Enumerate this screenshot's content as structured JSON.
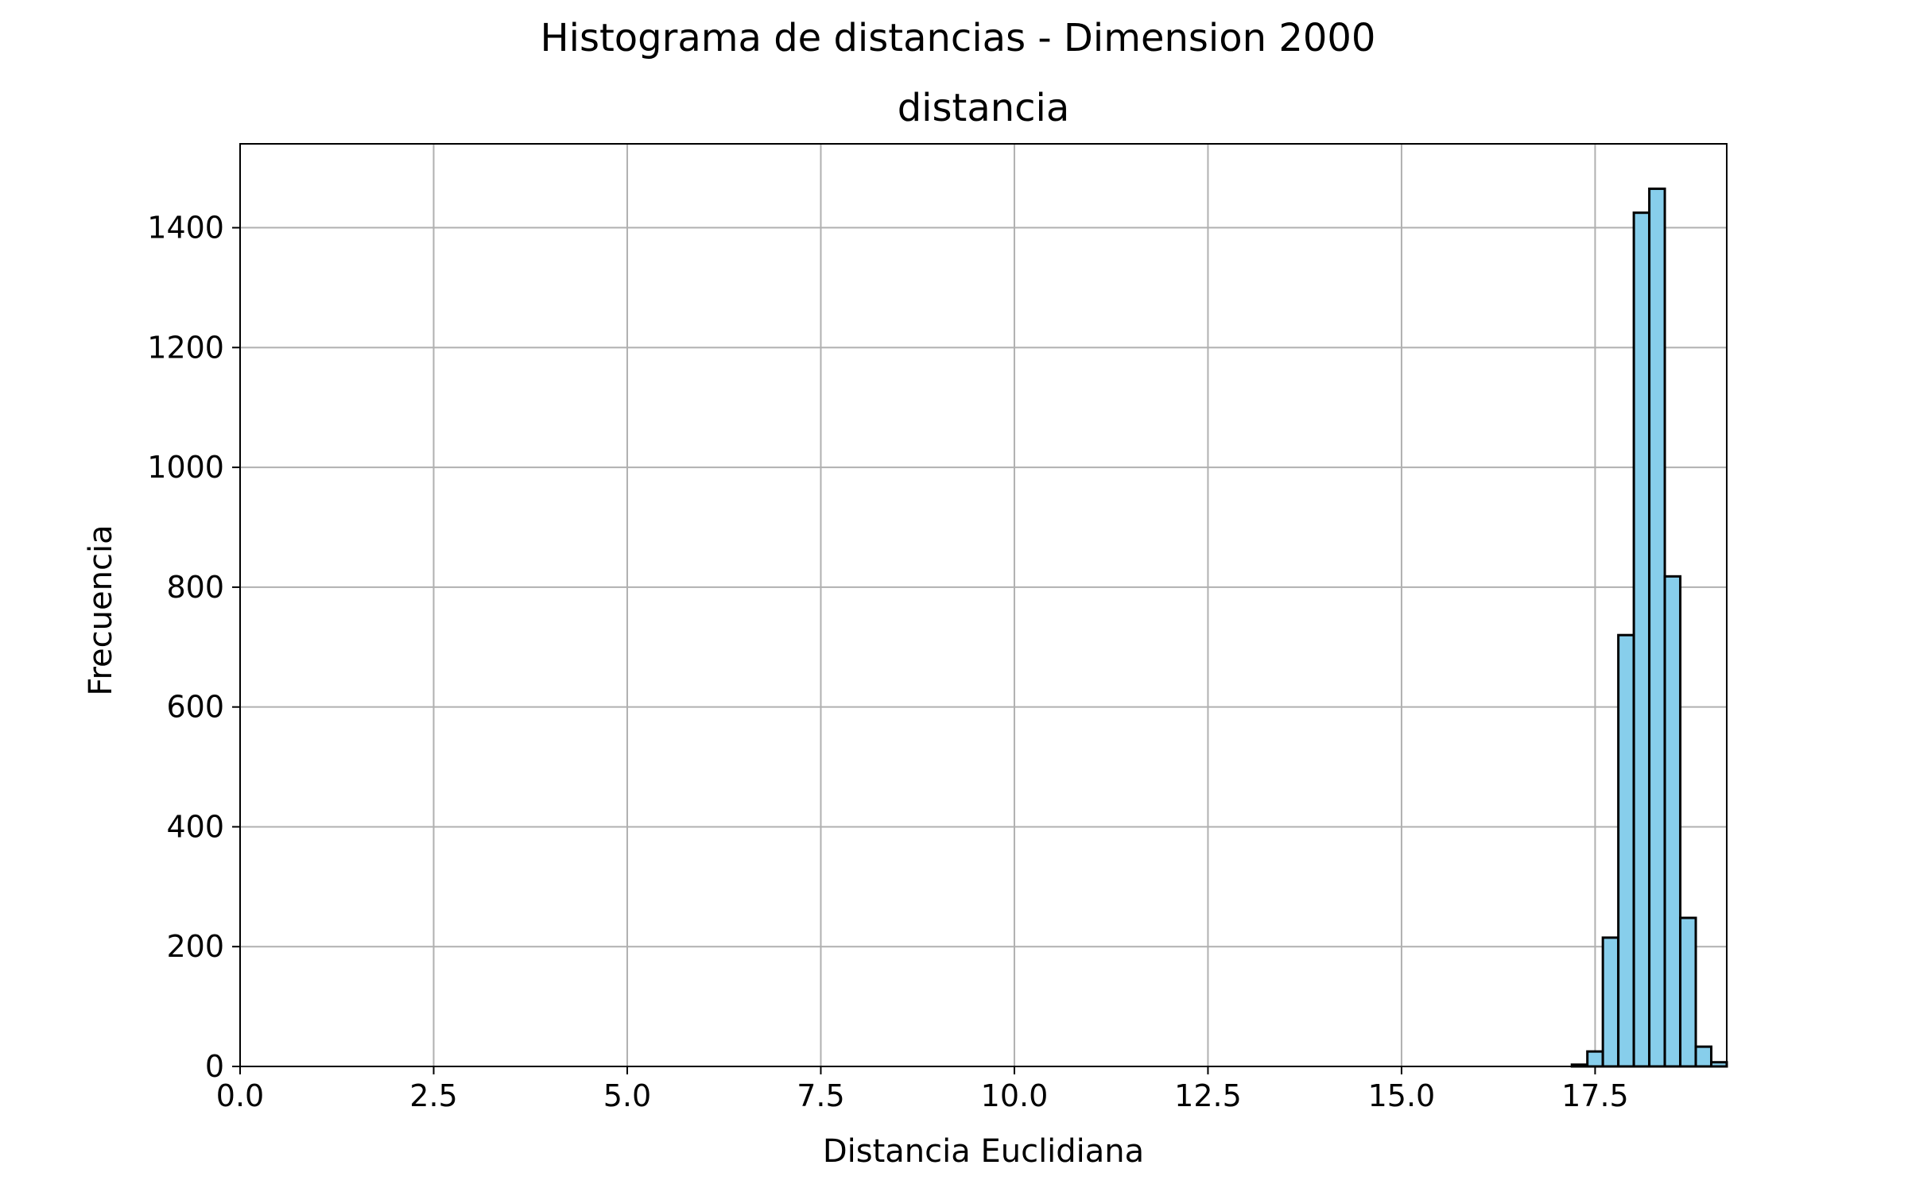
{
  "chart_data": {
    "type": "bar",
    "title": "Histograma de distancias - Dimension 2000",
    "subtitle": "distancia",
    "xlabel": "Distancia Euclidiana",
    "ylabel": "Frecuencia",
    "xlim": [
      0,
      19.2
    ],
    "ylim": [
      0,
      1540
    ],
    "x_ticks": [
      0.0,
      2.5,
      5.0,
      7.5,
      10.0,
      12.5,
      15.0,
      17.5
    ],
    "x_tick_labels": [
      "0.0",
      "2.5",
      "5.0",
      "7.5",
      "10.0",
      "12.5",
      "15.0",
      "17.5"
    ],
    "y_ticks": [
      0,
      200,
      400,
      600,
      800,
      1000,
      1200,
      1400
    ],
    "y_tick_labels": [
      "0",
      "200",
      "400",
      "600",
      "800",
      "1000",
      "1200",
      "1400"
    ],
    "grid": true,
    "legend": "none",
    "bar_color": "#87CEEB",
    "edge_color": "#000000",
    "bins": [
      {
        "x0": 17.2,
        "x1": 17.4,
        "value": 3
      },
      {
        "x0": 17.4,
        "x1": 17.6,
        "value": 25
      },
      {
        "x0": 17.6,
        "x1": 17.8,
        "value": 215
      },
      {
        "x0": 17.8,
        "x1": 18.0,
        "value": 720
      },
      {
        "x0": 18.0,
        "x1": 18.2,
        "value": 1425
      },
      {
        "x0": 18.2,
        "x1": 18.4,
        "value": 1465
      },
      {
        "x0": 18.4,
        "x1": 18.6,
        "value": 818
      },
      {
        "x0": 18.6,
        "x1": 18.8,
        "value": 248
      },
      {
        "x0": 18.8,
        "x1": 19.0,
        "value": 33
      },
      {
        "x0": 19.0,
        "x1": 19.2,
        "value": 7
      }
    ]
  }
}
